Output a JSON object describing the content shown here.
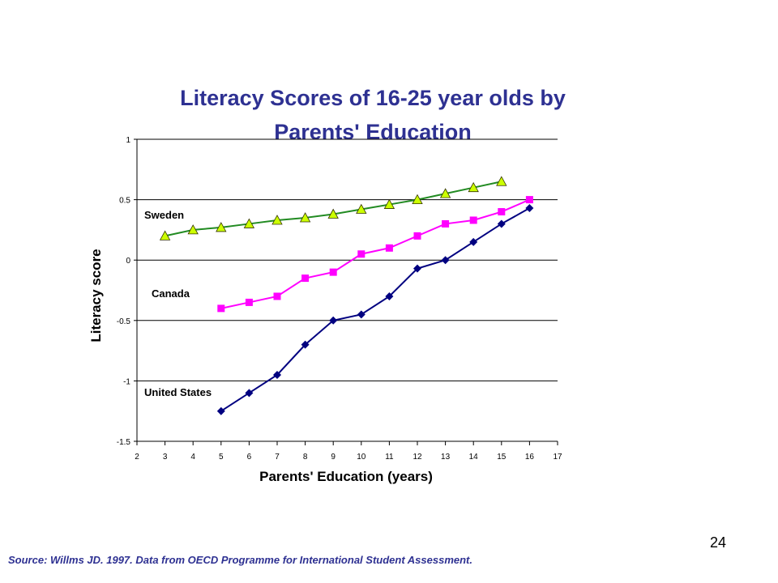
{
  "chart_data": {
    "type": "line",
    "title_line1": "Literacy Scores of 16-25 year olds  by",
    "title_line2": "Parents' Education",
    "xlabel": "Parents' Education (years)",
    "ylabel": "Literacy score",
    "xlim": [
      2,
      17
    ],
    "ylim": [
      -1.5,
      1
    ],
    "x_ticks": [
      "2",
      "3",
      "4",
      "5",
      "6",
      "7",
      "8",
      "9",
      "10",
      "11",
      "12",
      "13",
      "14",
      "15",
      "16",
      "17"
    ],
    "y_ticks": [
      "1",
      "0.5",
      "0",
      "-0.5",
      "-1",
      "-1.5"
    ],
    "grid": "horizontal",
    "series": [
      {
        "name": "Sweden",
        "color": "#228b22",
        "marker": "triangle",
        "marker_fill": "#ccff00",
        "x": [
          3,
          4,
          5,
          6,
          7,
          8,
          9,
          10,
          11,
          12,
          13,
          14,
          15
        ],
        "values": [
          0.2,
          0.25,
          0.27,
          0.3,
          0.33,
          0.35,
          0.38,
          0.42,
          0.46,
          0.5,
          0.55,
          0.6,
          0.65
        ]
      },
      {
        "name": "Canada",
        "color": "#ff00ff",
        "marker": "square",
        "marker_fill": "#ff00ff",
        "x": [
          5,
          6,
          7,
          8,
          9,
          10,
          11,
          12,
          13,
          14,
          15,
          16
        ],
        "values": [
          -0.4,
          -0.35,
          -0.3,
          -0.15,
          -0.1,
          0.05,
          0.1,
          0.2,
          0.3,
          0.33,
          0.4,
          0.5
        ]
      },
      {
        "name": "United  States",
        "color": "#000080",
        "marker": "diamond",
        "marker_fill": "#000080",
        "x": [
          5,
          6,
          7,
          8,
          9,
          10,
          11,
          12,
          13,
          14,
          15,
          16
        ],
        "values": [
          -1.25,
          -1.1,
          -0.95,
          -0.7,
          -0.5,
          -0.45,
          -0.3,
          -0.07,
          0,
          0.15,
          0.3,
          0.43
        ]
      }
    ]
  },
  "footer": {
    "source": "Source:  Willms  JD. 1997. Data from OECD Programme for International Student Assessment.",
    "page_number": "24"
  }
}
